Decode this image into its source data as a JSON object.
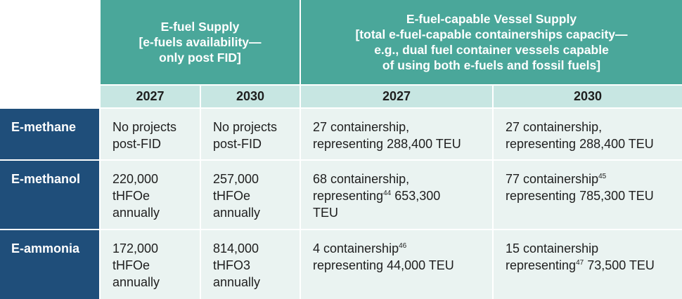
{
  "header": {
    "efuel_supply": [
      "E-fuel Supply",
      "[e-fuels availability—",
      "only post FID]"
    ],
    "vessel_supply": [
      "E-fuel-capable Vessel Supply",
      "[total e-fuel-capable containerships capacity—",
      "e.g., dual fuel container vessels capable",
      "of using both e-fuels and fossil fuels]"
    ],
    "years": [
      "2027",
      "2030",
      "2027",
      "2030"
    ]
  },
  "rows": [
    {
      "label": "E-methane",
      "efuel_2027": [
        "No projects",
        "post-FID"
      ],
      "efuel_2030": [
        "No projects",
        "post-FID"
      ],
      "vessel_2027": {
        "line1": "27 containership,",
        "line2_a": "representing 288,400 TEU",
        "sup": "",
        "line2_b": ""
      },
      "vessel_2030": {
        "line1": "27 containership,",
        "line2_a": "representing 288,400 TEU",
        "sup": "",
        "line2_b": ""
      }
    },
    {
      "label": "E-methanol",
      "efuel_2027": [
        "220,000",
        "tHFOe",
        "annually"
      ],
      "efuel_2030": [
        "257,000",
        "tHFOe",
        "annually"
      ],
      "vessel_2027": {
        "line1": "68 containership,",
        "line2_a": "representing",
        "sup": "44",
        "line2_b": " 653,300",
        "line3": "TEU"
      },
      "vessel_2030": {
        "line1": "77 containership",
        "line1_sup": "45",
        "line2_a": "representing 785,300 TEU",
        "sup": "",
        "line2_b": ""
      }
    },
    {
      "label": "E-ammonia",
      "efuel_2027": [
        "172,000",
        "tHFOe",
        "annually"
      ],
      "efuel_2030": [
        "814,000",
        "tHFO3",
        "annually"
      ],
      "vessel_2027": {
        "line1": "4 containership",
        "line1_sup": "46",
        "line2_a": "representing 44,000 TEU",
        "sup": "",
        "line2_b": ""
      },
      "vessel_2030": {
        "line1": "15 containership",
        "line2_a": "representing",
        "sup": "47",
        "line2_b": " 73,500 TEU"
      }
    }
  ]
}
